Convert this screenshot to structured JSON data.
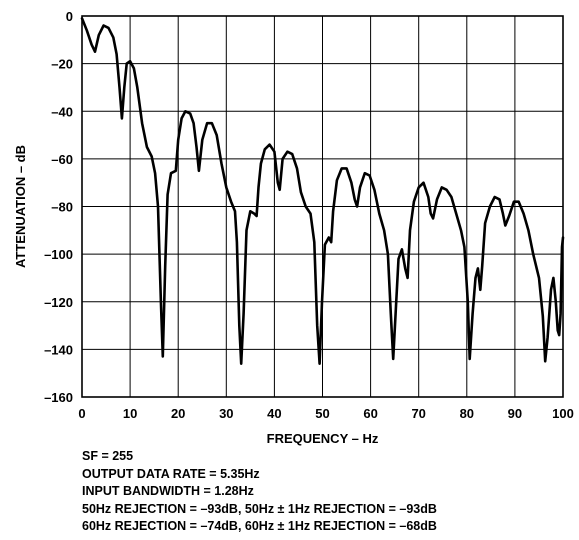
{
  "chart_data": {
    "type": "line",
    "xlabel": "FREQUENCY – Hz",
    "ylabel": "ATTENUATION – dB",
    "xlim": [
      0,
      100
    ],
    "ylim": [
      -160,
      0
    ],
    "grid": true,
    "x_ticks": [
      "0",
      "10",
      "20",
      "30",
      "40",
      "50",
      "60",
      "70",
      "80",
      "90",
      "100"
    ],
    "y_ticks": [
      "0",
      "–20",
      "–40",
      "–60",
      "–80",
      "–100",
      "–120",
      "–140",
      "–160"
    ],
    "series": [
      {
        "color": "#000000",
        "points": [
          [
            0,
            -1
          ],
          [
            1,
            -6
          ],
          [
            2,
            -12
          ],
          [
            2.7,
            -15
          ],
          [
            3.5,
            -8
          ],
          [
            4.5,
            -4
          ],
          [
            5.5,
            -5
          ],
          [
            6.5,
            -9
          ],
          [
            7.2,
            -16
          ],
          [
            7.8,
            -30
          ],
          [
            8.3,
            -43
          ],
          [
            8.8,
            -30
          ],
          [
            9.3,
            -20
          ],
          [
            10,
            -19
          ],
          [
            10.8,
            -22
          ],
          [
            11.5,
            -30
          ],
          [
            12.5,
            -45
          ],
          [
            13.5,
            -55
          ],
          [
            14.5,
            -59
          ],
          [
            15.2,
            -66
          ],
          [
            15.8,
            -80
          ],
          [
            16.4,
            -120
          ],
          [
            16.8,
            -143
          ],
          [
            17.3,
            -105
          ],
          [
            17.8,
            -75
          ],
          [
            18.5,
            -66
          ],
          [
            19.5,
            -65
          ],
          [
            20,
            -52
          ],
          [
            20.7,
            -43
          ],
          [
            21.5,
            -40
          ],
          [
            22.5,
            -41
          ],
          [
            23.2,
            -45
          ],
          [
            23.8,
            -55
          ],
          [
            24.3,
            -65
          ],
          [
            25,
            -52
          ],
          [
            26,
            -45
          ],
          [
            27,
            -45
          ],
          [
            28,
            -50
          ],
          [
            29,
            -62
          ],
          [
            30,
            -72
          ],
          [
            31,
            -78
          ],
          [
            31.8,
            -82
          ],
          [
            32.2,
            -95
          ],
          [
            32.7,
            -130
          ],
          [
            33.1,
            -146
          ],
          [
            33.6,
            -125
          ],
          [
            34.2,
            -90
          ],
          [
            35,
            -82
          ],
          [
            35.8,
            -83
          ],
          [
            36.3,
            -84
          ],
          [
            36.7,
            -72
          ],
          [
            37.2,
            -62
          ],
          [
            38,
            -56
          ],
          [
            39,
            -54
          ],
          [
            40,
            -57
          ],
          [
            40.7,
            -70
          ],
          [
            41.1,
            -73
          ],
          [
            41.7,
            -60
          ],
          [
            42.7,
            -57
          ],
          [
            43.7,
            -58
          ],
          [
            44.7,
            -64
          ],
          [
            45.5,
            -74
          ],
          [
            46.5,
            -80
          ],
          [
            47.5,
            -83
          ],
          [
            48.3,
            -95
          ],
          [
            48.9,
            -130
          ],
          [
            49.4,
            -146
          ],
          [
            49.9,
            -120
          ],
          [
            50.5,
            -96
          ],
          [
            51.3,
            -93
          ],
          [
            51.8,
            -95
          ],
          [
            52.2,
            -82
          ],
          [
            53,
            -69
          ],
          [
            54,
            -64
          ],
          [
            55,
            -64
          ],
          [
            56,
            -70
          ],
          [
            56.7,
            -77
          ],
          [
            57.2,
            -80
          ],
          [
            57.8,
            -72
          ],
          [
            58.8,
            -66
          ],
          [
            59.8,
            -67
          ],
          [
            60.8,
            -73
          ],
          [
            61.8,
            -83
          ],
          [
            62.8,
            -90
          ],
          [
            63.6,
            -100
          ],
          [
            64.2,
            -125
          ],
          [
            64.7,
            -144
          ],
          [
            65.2,
            -125
          ],
          [
            65.8,
            -102
          ],
          [
            66.5,
            -98
          ],
          [
            67.2,
            -106
          ],
          [
            67.7,
            -110
          ],
          [
            68.2,
            -90
          ],
          [
            69,
            -78
          ],
          [
            70,
            -72
          ],
          [
            71,
            -70
          ],
          [
            72,
            -76
          ],
          [
            72.5,
            -83
          ],
          [
            73,
            -85
          ],
          [
            73.8,
            -77
          ],
          [
            74.8,
            -72
          ],
          [
            75.8,
            -73
          ],
          [
            76.8,
            -76
          ],
          [
            77.8,
            -83
          ],
          [
            78.8,
            -90
          ],
          [
            79.5,
            -97
          ],
          [
            80.2,
            -120
          ],
          [
            80.6,
            -144
          ],
          [
            81.2,
            -125
          ],
          [
            81.8,
            -110
          ],
          [
            82.3,
            -106
          ],
          [
            82.8,
            -115
          ],
          [
            83.2,
            -105
          ],
          [
            83.8,
            -87
          ],
          [
            84.8,
            -80
          ],
          [
            85.8,
            -76
          ],
          [
            86.8,
            -77
          ],
          [
            87.5,
            -83
          ],
          [
            88,
            -88
          ],
          [
            88.8,
            -84
          ],
          [
            89.8,
            -78
          ],
          [
            90.8,
            -78
          ],
          [
            91.8,
            -83
          ],
          [
            92.8,
            -90
          ],
          [
            93.8,
            -100
          ],
          [
            95,
            -110
          ],
          [
            95.8,
            -126
          ],
          [
            96.3,
            -145
          ],
          [
            96.8,
            -135
          ],
          [
            97.5,
            -115
          ],
          [
            98,
            -110
          ],
          [
            98.5,
            -120
          ],
          [
            98.9,
            -132
          ],
          [
            99.2,
            -134
          ],
          [
            99.5,
            -125
          ],
          [
            99.8,
            -97
          ],
          [
            100,
            -93
          ]
        ]
      }
    ]
  },
  "notes": [
    "SF = 255",
    "OUTPUT DATA RATE = 5.35Hz",
    "INPUT BANDWIDTH = 1.28Hz",
    "50Hz REJECTION = –93dB, 50Hz ± 1Hz REJECTION = –93dB",
    "60Hz REJECTION = –74dB, 60Hz ± 1Hz REJECTION = –68dB"
  ]
}
